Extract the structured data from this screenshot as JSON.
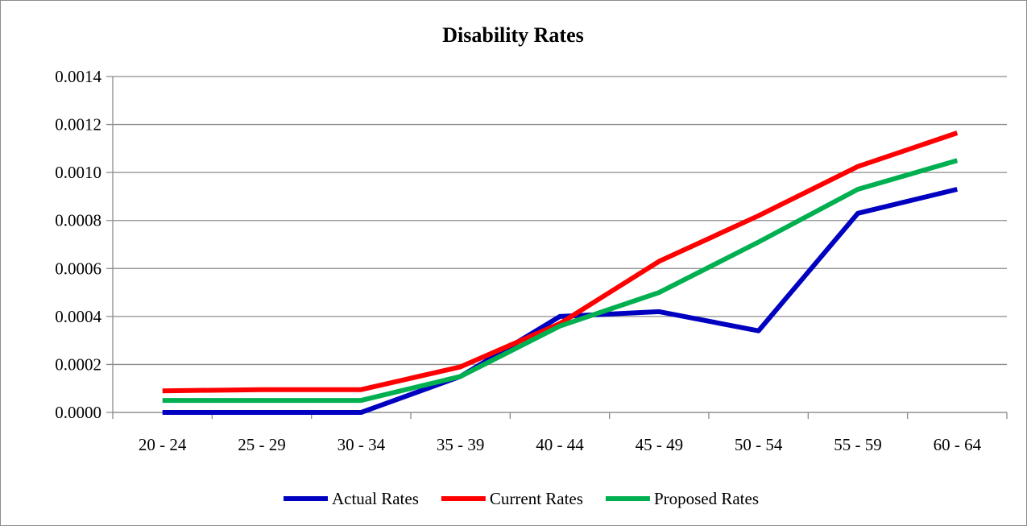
{
  "chart_data": {
    "type": "line",
    "title": "Disability Rates",
    "categories": [
      "20 - 24",
      "25 - 29",
      "30 - 34",
      "35 - 39",
      "40 - 44",
      "45 - 49",
      "50 - 54",
      "55 - 59",
      "60 - 64"
    ],
    "ylim": [
      0,
      0.0014
    ],
    "yticks": [
      "0.0000",
      "0.0002",
      "0.0004",
      "0.0006",
      "0.0008",
      "0.0010",
      "0.0012",
      "0.0014"
    ],
    "grid": true,
    "legend_position": "bottom",
    "series": [
      {
        "name": "Actual Rates",
        "color": "#0000c0",
        "values": [
          0.0,
          0.0,
          0.0,
          0.00015,
          0.0004,
          0.00042,
          0.00034,
          0.00083,
          0.00093
        ]
      },
      {
        "name": "Current Rates",
        "color": "#ff0000",
        "values": [
          9e-05,
          9.5e-05,
          9.5e-05,
          0.00019,
          0.00037,
          0.00063,
          0.00082,
          0.001025,
          0.001165
        ]
      },
      {
        "name": "Proposed Rates",
        "color": "#00b050",
        "values": [
          5e-05,
          5e-05,
          5e-05,
          0.00015,
          0.00036,
          0.0005,
          0.00071,
          0.00093,
          0.00105
        ]
      }
    ]
  }
}
